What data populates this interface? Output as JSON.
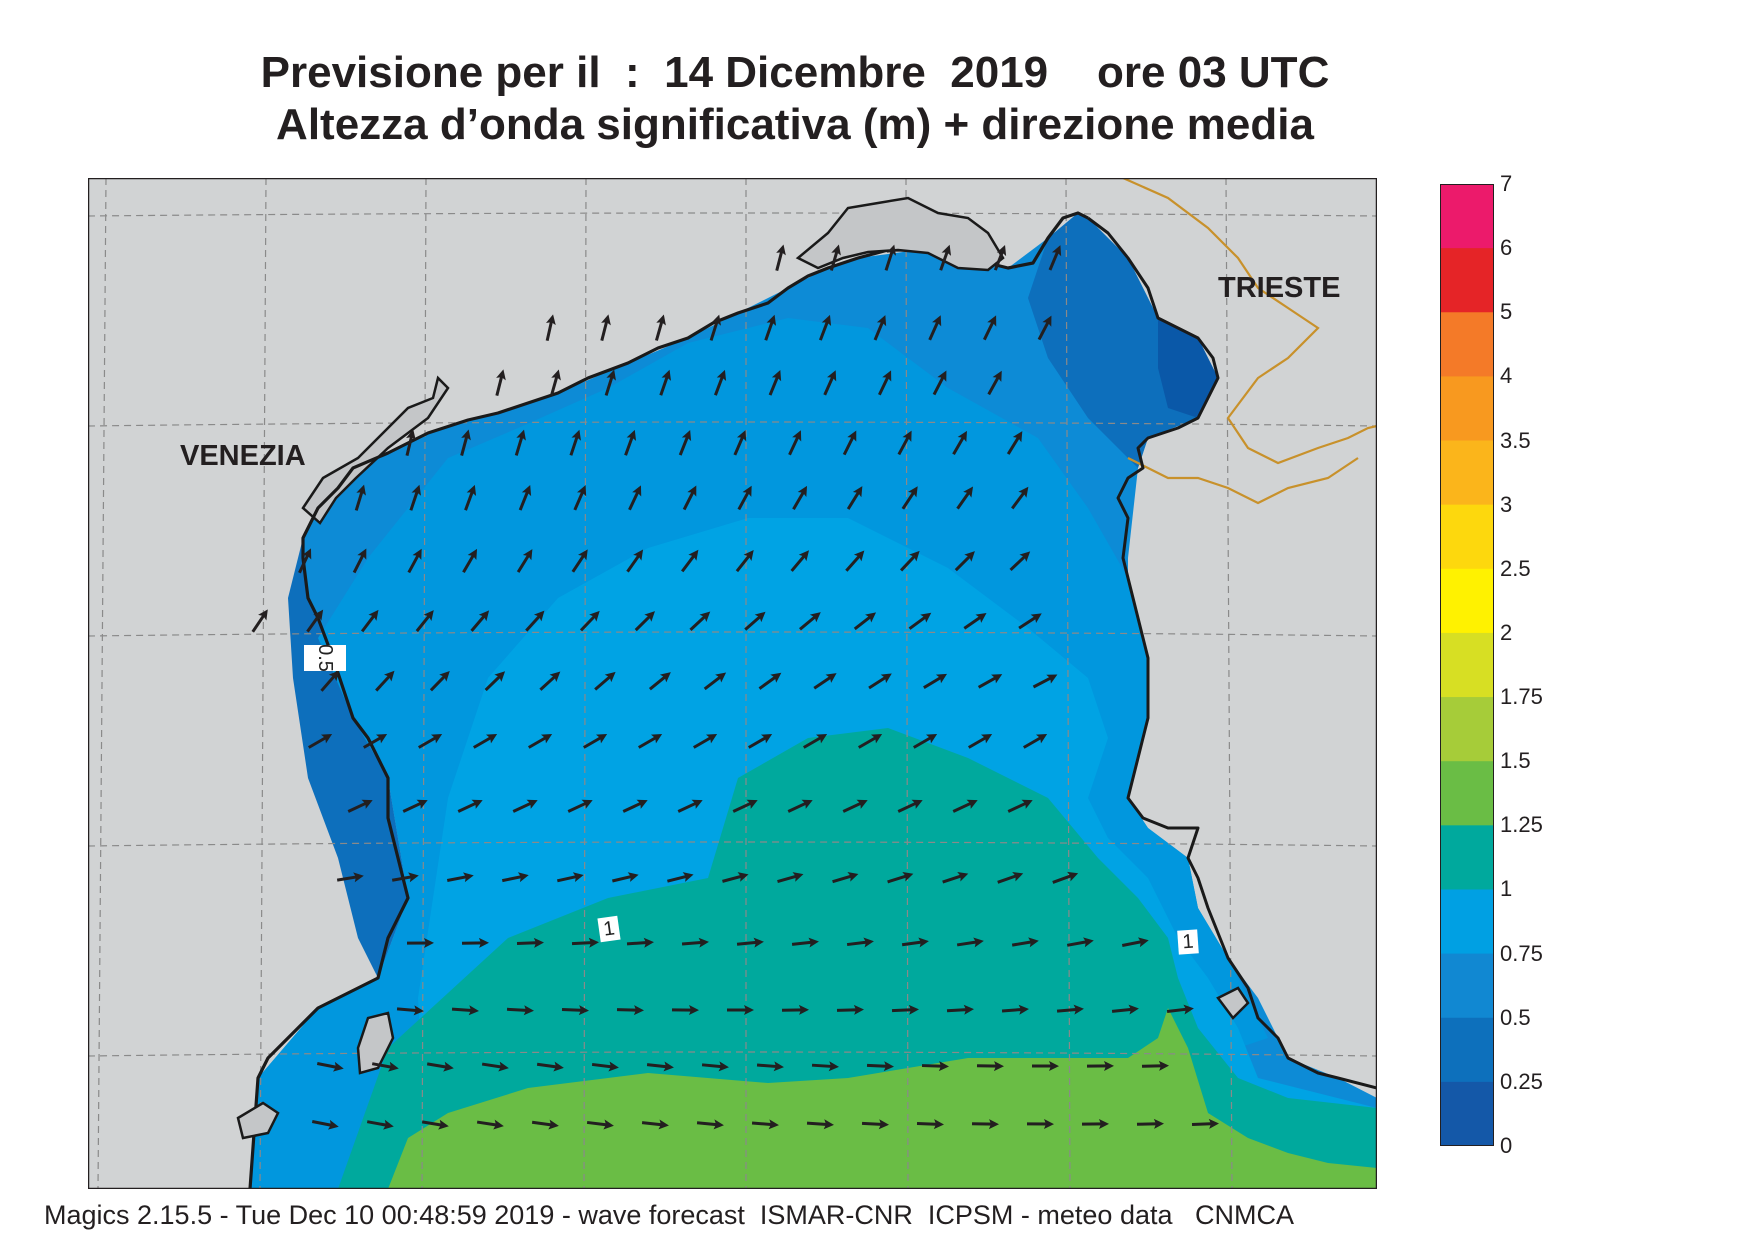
{
  "header": {
    "title_line1": "Previsione per il  :  14 Dicembre  2019    ore 03 UTC",
    "title_line2": "Altezza d’onda significativa (m) + direzione media"
  },
  "map": {
    "places": {
      "venezia": "VENEZIA",
      "trieste": "TRIESTE"
    },
    "contour_labels": [
      "0.5",
      "1",
      "1"
    ],
    "colors": {
      "land": "#d1d3d4",
      "coast": "#1a1a1a",
      "border": "#c8912b",
      "grid": "#8a8a8a",
      "arrow": "#231f20"
    }
  },
  "legend": {
    "ticks": [
      "7",
      "6",
      "5",
      "4",
      "3.5",
      "3",
      "2.5",
      "2",
      "1.75",
      "1.5",
      "1.25",
      "1",
      "0.75",
      "0.5",
      "0.25",
      "0"
    ],
    "colors": [
      "#ec1a6b",
      "#e52427",
      "#f47a28",
      "#f8991f",
      "#fbb51b",
      "#fdd80d",
      "#fff200",
      "#d7df23",
      "#a6cc39",
      "#6abd45",
      "#00a99d",
      "#00a0e3",
      "#1188d2",
      "#0d70bc",
      "#1458a8"
    ]
  },
  "footer": {
    "text": "Magics 2.15.5 - Tue Dec 10 00:48:59 2019 - wave forecast  ISMAR-CNR  ICPSM - meteo data   CNMCA"
  }
}
